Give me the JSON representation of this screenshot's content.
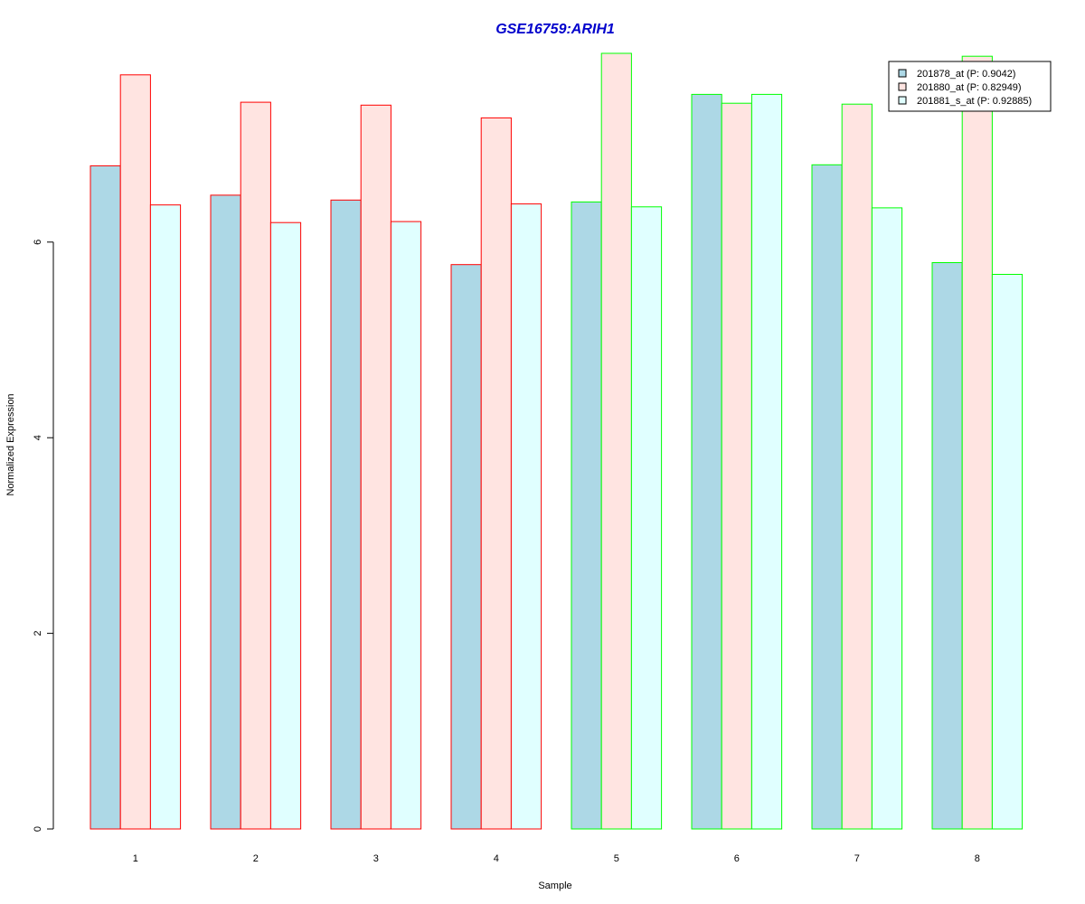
{
  "chart_data": {
    "type": "bar",
    "title": "GSE16759:ARIH1",
    "xlabel": "Sample",
    "ylabel": "Normalized Expression",
    "categories": [
      "1",
      "2",
      "3",
      "4",
      "5",
      "6",
      "7",
      "8"
    ],
    "ylim": [
      0,
      8
    ],
    "yticks": [
      0,
      2,
      4,
      6
    ],
    "grid": false,
    "legend_position": "top-right",
    "series": [
      {
        "name": "201878_at (P: 0.9042)",
        "fill": "#add8e6",
        "values": [
          6.78,
          6.48,
          6.43,
          5.77,
          6.41,
          7.51,
          6.79,
          5.79
        ]
      },
      {
        "name": "201880_at (P: 0.82949)",
        "fill": "#ffe4e1",
        "values": [
          7.71,
          7.43,
          7.4,
          7.27,
          7.93,
          7.42,
          7.41,
          7.9
        ]
      },
      {
        "name": "201881_s_at (P: 0.92885)",
        "fill": "#e0ffff",
        "values": [
          6.38,
          6.2,
          6.21,
          6.39,
          6.36,
          7.51,
          6.35,
          5.67
        ]
      }
    ],
    "group_border_colors": [
      "#ff0000",
      "#ff0000",
      "#ff0000",
      "#ff0000",
      "#00ff00",
      "#00ff00",
      "#00ff00",
      "#00ff00"
    ],
    "colors": {
      "title": "#0000cc",
      "axis": "#000000"
    }
  }
}
